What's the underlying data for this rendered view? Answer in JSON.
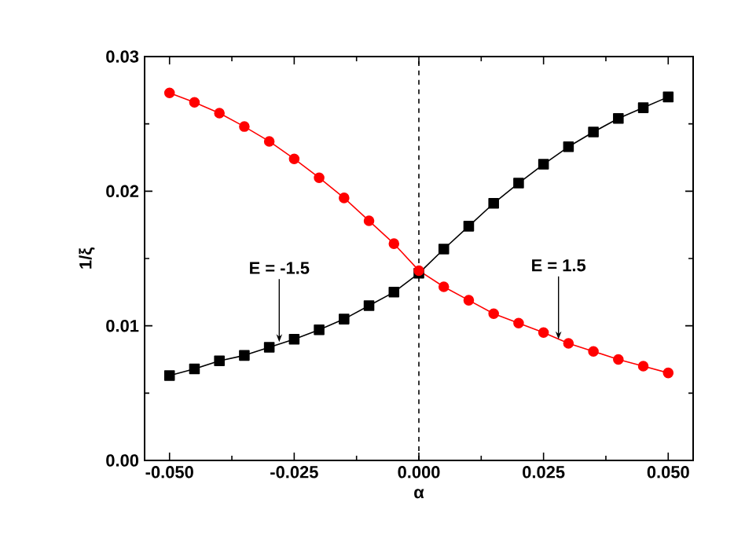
{
  "chart_data": {
    "type": "line",
    "xlabel": "α",
    "ylabel": "1/ξ",
    "x": [
      -0.05,
      -0.045,
      -0.04,
      -0.035,
      -0.03,
      -0.025,
      -0.02,
      -0.015,
      -0.01,
      -0.005,
      0,
      0.005,
      0.01,
      0.015,
      0.02,
      0.025,
      0.03,
      0.035,
      0.04,
      0.045,
      0.05
    ],
    "series": [
      {
        "color": "#000000",
        "marker": "square",
        "values": [
          0.0063,
          0.0068,
          0.0074,
          0.0078,
          0.0084,
          0.009,
          0.0097,
          0.0105,
          0.0115,
          0.0125,
          0.0139,
          0.0157,
          0.0174,
          0.0191,
          0.0206,
          0.022,
          0.0233,
          0.0244,
          0.0254,
          0.0262,
          0.027
        ]
      },
      {
        "color": "#ff0000",
        "marker": "circle",
        "values": [
          0.0273,
          0.0266,
          0.0258,
          0.0248,
          0.0237,
          0.0224,
          0.021,
          0.0195,
          0.0178,
          0.0161,
          0.0141,
          0.0129,
          0.0119,
          0.0109,
          0.0102,
          0.0095,
          0.0087,
          0.0081,
          0.0075,
          0.007,
          0.0065
        ]
      }
    ],
    "xlim": [
      -0.055,
      0.055
    ],
    "ylim": [
      0,
      0.03
    ],
    "xticks": [
      {
        "value": -0.05,
        "label": "-0.050"
      },
      {
        "value": -0.025,
        "label": "-0.025"
      },
      {
        "value": 0,
        "label": "0.000"
      },
      {
        "value": 0.025,
        "label": "0.025"
      },
      {
        "value": 0.05,
        "label": "0.050"
      }
    ],
    "yticks": [
      {
        "value": 0,
        "label": "0.00"
      },
      {
        "value": 0.01,
        "label": "0.01"
      },
      {
        "value": 0.02,
        "label": "0.02"
      },
      {
        "value": 0.03,
        "label": "0.03"
      }
    ],
    "ref_lines": [
      {
        "axis": "x",
        "value": 0,
        "line_style": "dashed",
        "color": "#000000"
      }
    ],
    "annotations": [
      {
        "text": "E = -1.5",
        "x": -0.028,
        "y": 0.0088
      },
      {
        "text": "E = 1.5",
        "x": 0.028,
        "y": 0.009
      }
    ],
    "grid": false
  }
}
